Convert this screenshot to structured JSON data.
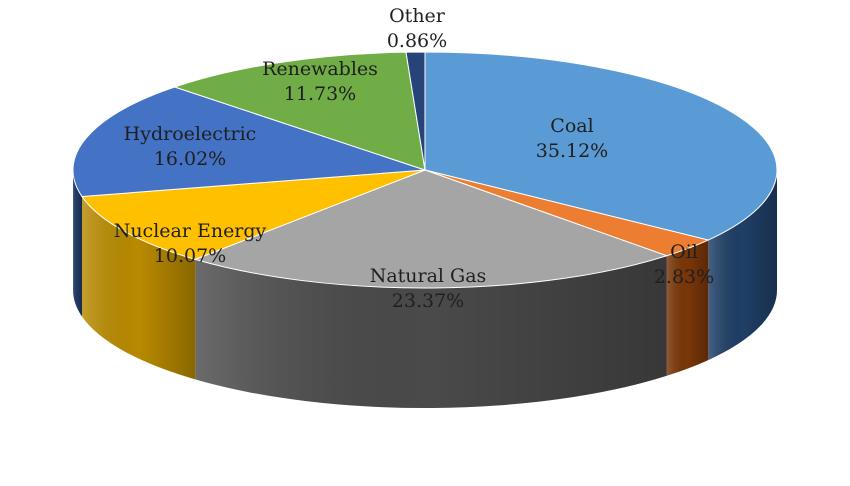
{
  "chart_data": {
    "type": "pie",
    "style": "3d",
    "title": "",
    "unit": "%",
    "slices": [
      {
        "label": "Coal",
        "value": 35.12,
        "value_text": "35.12%",
        "color": "#5b9bd5",
        "side": "#1f3f66"
      },
      {
        "label": "Oil",
        "value": 2.83,
        "value_text": "2.83%",
        "color": "#ed7d31",
        "side": "#7a3608"
      },
      {
        "label": "Natural Gas",
        "value": 23.37,
        "value_text": "23.37%",
        "color": "#a5a5a5",
        "side": "#4a4a4a"
      },
      {
        "label": "Nuclear Energy",
        "value": 10.07,
        "value_text": "10.07%",
        "color": "#ffc000",
        "side": "#b88a00"
      },
      {
        "label": "Hydroelectric",
        "value": 16.02,
        "value_text": "16.02%",
        "color": "#4472c4",
        "side": "#203864"
      },
      {
        "label": "Renewables",
        "value": 11.73,
        "value_text": "11.73%",
        "color": "#70ad47",
        "side": "#3a5e23"
      },
      {
        "label": "Other",
        "value": 0.86,
        "value_text": "0.86%",
        "color": "#264478",
        "side": "#16294a"
      }
    ]
  }
}
